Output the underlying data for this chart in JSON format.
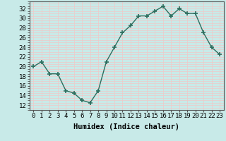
{
  "x": [
    0,
    1,
    2,
    3,
    4,
    5,
    6,
    7,
    8,
    9,
    10,
    11,
    12,
    13,
    14,
    15,
    16,
    17,
    18,
    19,
    20,
    21,
    22,
    23
  ],
  "y": [
    20,
    21,
    18.5,
    18.5,
    15,
    14.5,
    13,
    12.5,
    15,
    21,
    24,
    27,
    28.5,
    30.5,
    30.5,
    31.5,
    32.5,
    30.5,
    32,
    31,
    31,
    27,
    24,
    22.5
  ],
  "line_color": "#2d6e5e",
  "marker": "+",
  "marker_size": 4,
  "bg_color": "#c8eae8",
  "grid_color": "#f0c8c8",
  "xlabel": "Humidex (Indice chaleur)",
  "ylim": [
    11,
    33.5
  ],
  "xlim": [
    -0.5,
    23.5
  ],
  "yticks": [
    12,
    14,
    16,
    18,
    20,
    22,
    24,
    26,
    28,
    30,
    32
  ],
  "xticks": [
    0,
    1,
    2,
    3,
    4,
    5,
    6,
    7,
    8,
    9,
    10,
    11,
    12,
    13,
    14,
    15,
    16,
    17,
    18,
    19,
    20,
    21,
    22,
    23
  ],
  "xlabel_fontsize": 7.5,
  "tick_fontsize": 6.5
}
